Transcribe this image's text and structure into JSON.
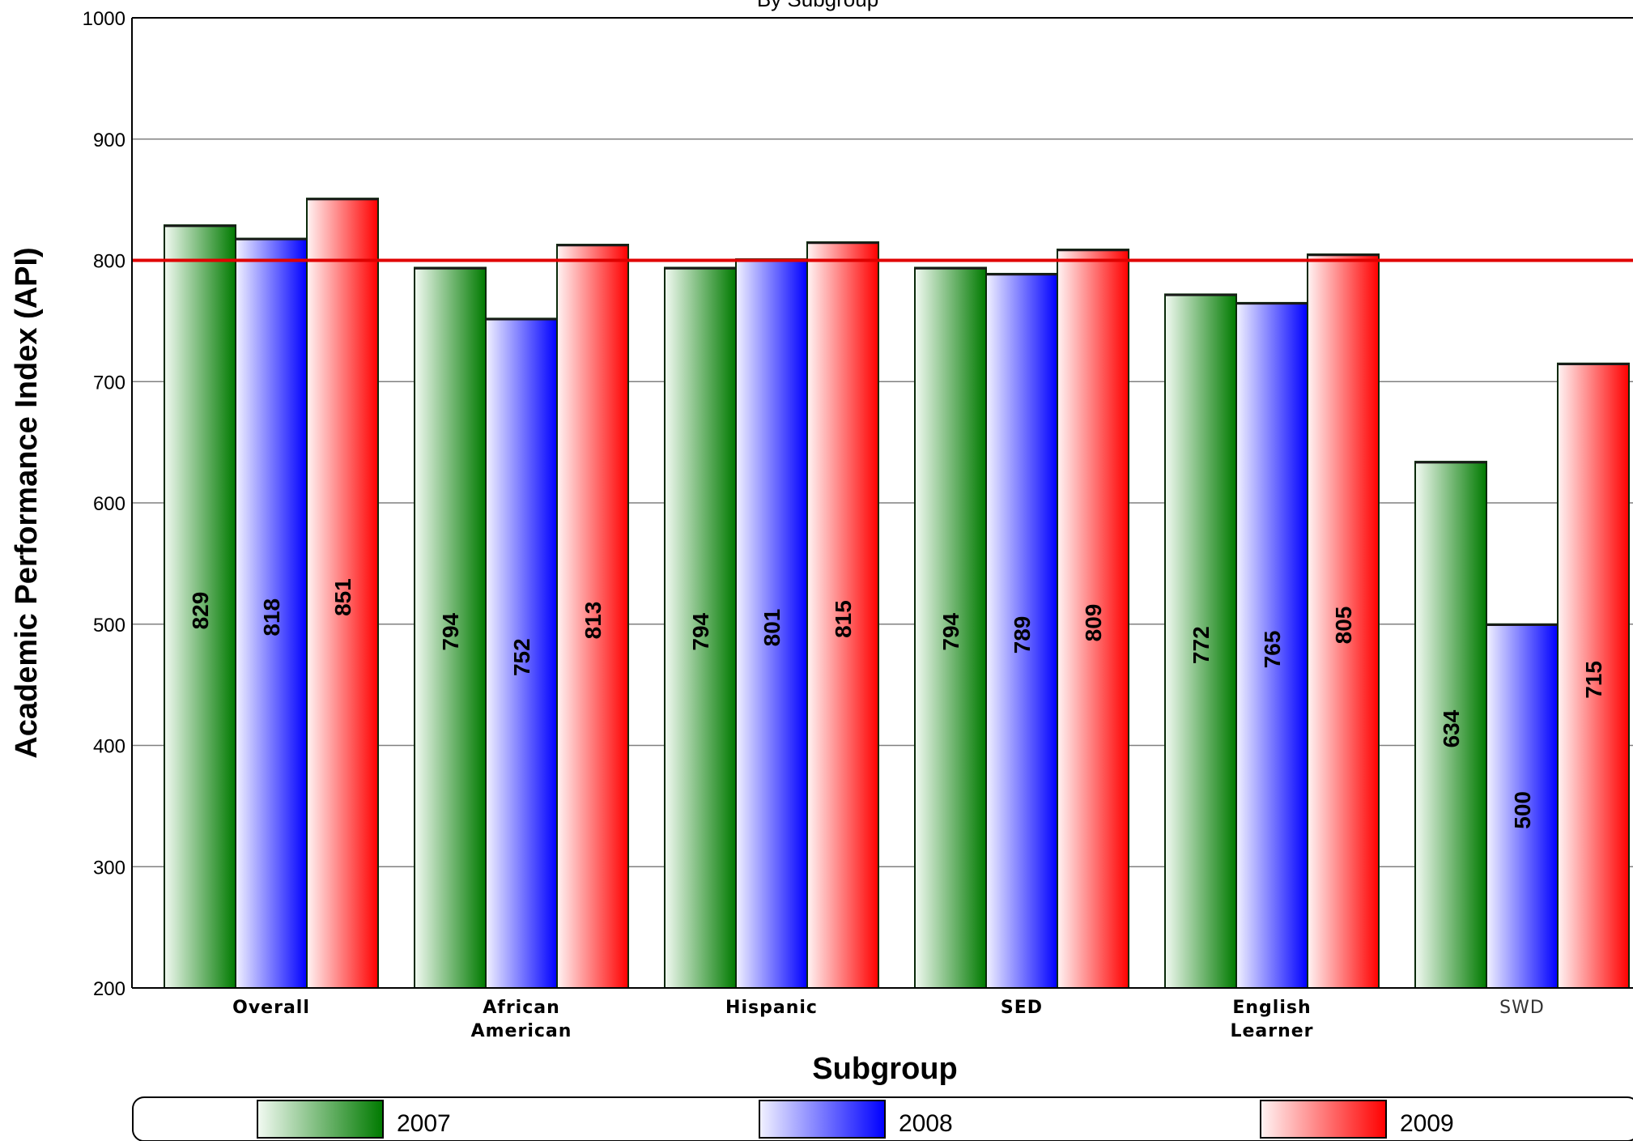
{
  "chart_data": {
    "type": "bar",
    "title": "By Subgroup",
    "xlabel": "Subgroup",
    "ylabel": "Academic Performance Index (API)",
    "ylim": [
      200,
      1000
    ],
    "yticks": [
      200,
      300,
      400,
      500,
      600,
      700,
      800,
      900,
      1000
    ],
    "grid": true,
    "reference_line": {
      "value": 800,
      "color": "#e00000"
    },
    "categories": [
      [
        "Overall"
      ],
      [
        "African",
        "American"
      ],
      [
        "Hispanic"
      ],
      [
        "SED"
      ],
      [
        "English",
        "Learner"
      ],
      [
        "SWD"
      ]
    ],
    "series": [
      {
        "name": "2007",
        "color": "#007a00",
        "light": "#f2faf2",
        "values": [
          829,
          794,
          794,
          794,
          772,
          634
        ]
      },
      {
        "name": "2008",
        "color": "#0000ff",
        "light": "#f2f2ff",
        "values": [
          818,
          752,
          801,
          789,
          765,
          500
        ]
      },
      {
        "name": "2009",
        "color": "#ff0000",
        "light": "#fff4f4",
        "values": [
          851,
          813,
          815,
          809,
          805,
          715
        ]
      }
    ],
    "legend_position": "bottom"
  }
}
